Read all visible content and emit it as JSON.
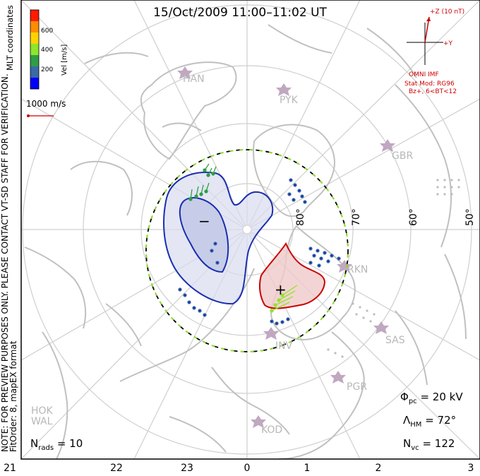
{
  "title": "15/Oct/2009 11:00–11:02 UT",
  "colorbar": {
    "label": "Vel [m/s]",
    "ticks": [
      "600",
      "400",
      "200"
    ],
    "colors": [
      "#ff1a00",
      "#ff8c00",
      "#ffd200",
      "#8fe52a",
      "#2e9e46",
      "#3a6aa6",
      "#0000ff"
    ]
  },
  "coordinates_label": "MLT coordinates",
  "scale_label": "1000 m/s",
  "imf": {
    "z_label": "+Z (10 nT)",
    "y_label": "+Y",
    "source": "OMNI IMF",
    "model": "Stat Mod: RG96",
    "condition": "Bz+, 6<BT<12"
  },
  "note": "NOTE: FOR PREVIEW PURPOSES ONLY. PLEASE CONTACT VT-SD STAFF FOR VERIFICATION.",
  "fit_order": "FitOrder: 8, mapEX format",
  "stats": {
    "phi_pc": {
      "symbol": "Φ",
      "sub": "pc",
      "value": "= 20 kV"
    },
    "lambda_hm": {
      "symbol": "Λ",
      "sub": "HM",
      "value": "= 72°"
    },
    "n_vc": {
      "symbol": "N",
      "sub": "vc",
      "value": "= 122"
    },
    "n_rads": {
      "symbol": "N",
      "sub": "rads",
      "value": "= 10"
    }
  },
  "mlt_labels": [
    "21",
    "22",
    "23",
    "0",
    "1",
    "2",
    "3"
  ],
  "lat_labels": [
    "80°",
    "70°",
    "60°",
    "50°"
  ],
  "stations": [
    "HAN",
    "PYK",
    "GBR",
    "RKN",
    "SAS",
    "INV",
    "PGR",
    "KOD",
    "HOK",
    "WAL"
  ],
  "potential_signs": {
    "negative": "−",
    "positive": "+"
  },
  "colors": {
    "negative_cell": "#1a2fb0",
    "positive_cell": "#cc0000",
    "boundary": "#8fe52a",
    "land": "#c0c0c0"
  }
}
